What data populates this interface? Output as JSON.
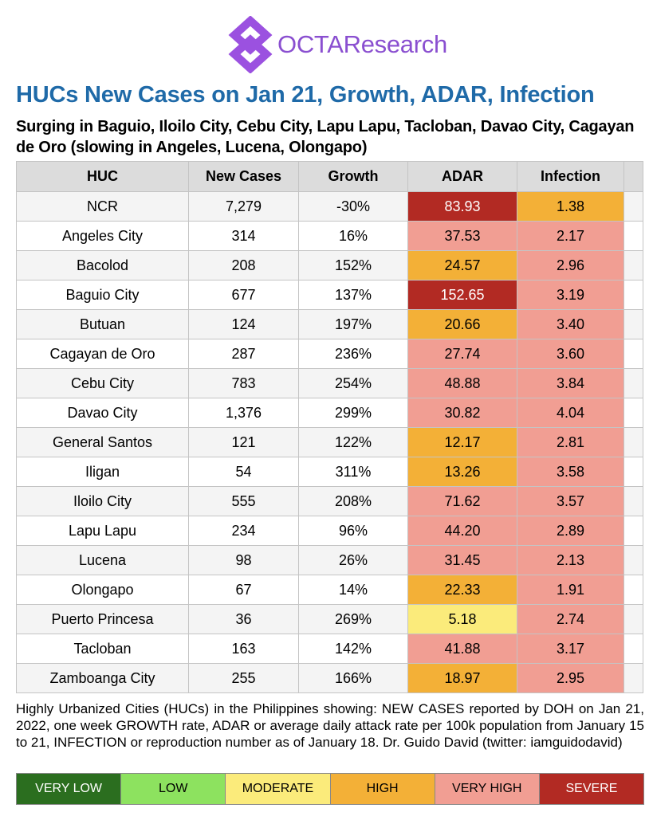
{
  "brand": {
    "name": "OCTAResearch",
    "accent": "#9b51e0"
  },
  "header": {
    "title": "HUCs New Cases on Jan 21, Growth, ADAR, Infection",
    "subtitle": "Surging in Baguio, Iloilo City, Cebu City, Lapu Lapu, Tacloban, Davao City, Cagayan de Oro (slowing in Angeles, Lucena, Olongapo)"
  },
  "table": {
    "columns": [
      "HUC",
      "New Cases",
      "Growth",
      "ADAR",
      "Infection"
    ],
    "rows": [
      {
        "huc": "NCR",
        "new_cases": "7,279",
        "growth": "-30%",
        "adar": "83.93",
        "adar_color": "#b22a23",
        "adar_text_color": "#ffffff",
        "infection": "1.38",
        "infection_color": "#f3b037"
      },
      {
        "huc": "Angeles City",
        "new_cases": "314",
        "growth": "16%",
        "adar": "37.53",
        "adar_color": "#f19e93",
        "adar_text_color": "#000000",
        "infection": "2.17",
        "infection_color": "#f19e93"
      },
      {
        "huc": "Bacolod",
        "new_cases": "208",
        "growth": "152%",
        "adar": "24.57",
        "adar_color": "#f3b037",
        "adar_text_color": "#000000",
        "infection": "2.96",
        "infection_color": "#f19e93"
      },
      {
        "huc": "Baguio City",
        "new_cases": "677",
        "growth": "137%",
        "adar": "152.65",
        "adar_color": "#b22a23",
        "adar_text_color": "#ffffff",
        "infection": "3.19",
        "infection_color": "#f19e93"
      },
      {
        "huc": "Butuan",
        "new_cases": "124",
        "growth": "197%",
        "adar": "20.66",
        "adar_color": "#f3b037",
        "adar_text_color": "#000000",
        "infection": "3.40",
        "infection_color": "#f19e93"
      },
      {
        "huc": "Cagayan de Oro",
        "new_cases": "287",
        "growth": "236%",
        "adar": "27.74",
        "adar_color": "#f19e93",
        "adar_text_color": "#000000",
        "infection": "3.60",
        "infection_color": "#f19e93"
      },
      {
        "huc": "Cebu City",
        "new_cases": "783",
        "growth": "254%",
        "adar": "48.88",
        "adar_color": "#f19e93",
        "adar_text_color": "#000000",
        "infection": "3.84",
        "infection_color": "#f19e93"
      },
      {
        "huc": "Davao City",
        "new_cases": "1,376",
        "growth": "299%",
        "adar": "30.82",
        "adar_color": "#f19e93",
        "adar_text_color": "#000000",
        "infection": "4.04",
        "infection_color": "#f19e93"
      },
      {
        "huc": "General Santos",
        "new_cases": "121",
        "growth": "122%",
        "adar": "12.17",
        "adar_color": "#f3b037",
        "adar_text_color": "#000000",
        "infection": "2.81",
        "infection_color": "#f19e93"
      },
      {
        "huc": "Iligan",
        "new_cases": "54",
        "growth": "311%",
        "adar": "13.26",
        "adar_color": "#f3b037",
        "adar_text_color": "#000000",
        "infection": "3.58",
        "infection_color": "#f19e93"
      },
      {
        "huc": "Iloilo City",
        "new_cases": "555",
        "growth": "208%",
        "adar": "71.62",
        "adar_color": "#f19e93",
        "adar_text_color": "#000000",
        "infection": "3.57",
        "infection_color": "#f19e93"
      },
      {
        "huc": "Lapu Lapu",
        "new_cases": "234",
        "growth": "96%",
        "adar": "44.20",
        "adar_color": "#f19e93",
        "adar_text_color": "#000000",
        "infection": "2.89",
        "infection_color": "#f19e93"
      },
      {
        "huc": "Lucena",
        "new_cases": "98",
        "growth": "26%",
        "adar": "31.45",
        "adar_color": "#f19e93",
        "adar_text_color": "#000000",
        "infection": "2.13",
        "infection_color": "#f19e93"
      },
      {
        "huc": "Olongapo",
        "new_cases": "67",
        "growth": "14%",
        "adar": "22.33",
        "adar_color": "#f3b037",
        "adar_text_color": "#000000",
        "infection": "1.91",
        "infection_color": "#f19e93"
      },
      {
        "huc": "Puerto Princesa",
        "new_cases": "36",
        "growth": "269%",
        "adar": "5.18",
        "adar_color": "#fbeb7b",
        "adar_text_color": "#000000",
        "infection": "2.74",
        "infection_color": "#f19e93"
      },
      {
        "huc": "Tacloban",
        "new_cases": "163",
        "growth": "142%",
        "adar": "41.88",
        "adar_color": "#f19e93",
        "adar_text_color": "#000000",
        "infection": "3.17",
        "infection_color": "#f19e93"
      },
      {
        "huc": "Zamboanga City",
        "new_cases": "255",
        "growth": "166%",
        "adar": "18.97",
        "adar_color": "#f3b037",
        "adar_text_color": "#000000",
        "infection": "2.95",
        "infection_color": "#f19e93"
      }
    ]
  },
  "footnote": "Highly Urbanized Cities (HUCs) in the Philippines showing: NEW CASES reported by DOH on Jan 21, 2022, one week GROWTH rate, ADAR or average daily attack rate per 100k population from January 15 to 21, INFECTION or reproduction number as of January 18. Dr. Guido David (twitter: iamguidodavid)",
  "legend": [
    {
      "label": "VERY LOW",
      "color": "#2b6e1f",
      "text_color": "#ffffff"
    },
    {
      "label": "LOW",
      "color": "#8de25f",
      "text_color": "#000000"
    },
    {
      "label": "MODERATE",
      "color": "#fbeb7b",
      "text_color": "#000000"
    },
    {
      "label": "HIGH",
      "color": "#f3b037",
      "text_color": "#000000"
    },
    {
      "label": "VERY HIGH",
      "color": "#f19e93",
      "text_color": "#000000"
    },
    {
      "label": "SEVERE",
      "color": "#b22a23",
      "text_color": "#ffffff"
    }
  ]
}
